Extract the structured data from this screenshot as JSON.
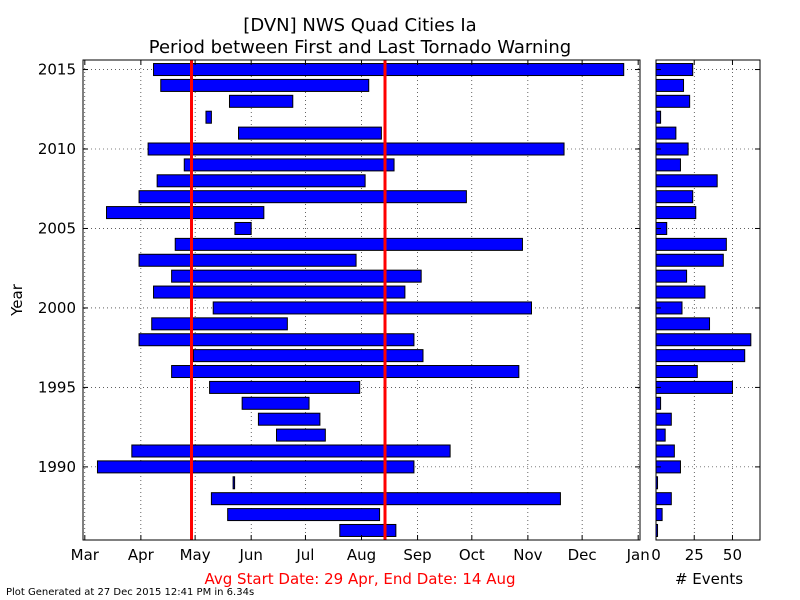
{
  "title": "[DVN] NWS Quad Cities Ia",
  "subtitle": "Period between First and Last Tornado Warning",
  "avg_text": "Avg Start Date: 29 Apr, End Date: 14 Aug",
  "footer": "Plot Generated at 27 Dec 2015 12:41 PM in 6.34s",
  "colors": {
    "bars": "#0000ff",
    "avg_lines": "#ff0000"
  },
  "chart_data": [
    {
      "type": "bar",
      "orientation": "horizontal-range",
      "title": "[DVN] NWS Quad Cities Ia",
      "subtitle": "Period between First and Last Tornado Warning",
      "xlabel": "",
      "ylabel": "Year",
      "x_tick_labels": [
        "Mar",
        "Apr",
        "May",
        "Jun",
        "Jul",
        "Aug",
        "Sep",
        "Oct",
        "Nov",
        "Dec",
        "Jan"
      ],
      "x_tick_dates": [
        "03-01",
        "04-01",
        "05-01",
        "06-01",
        "07-01",
        "08-01",
        "09-01",
        "10-01",
        "11-01",
        "12-01",
        "01-01"
      ],
      "y_ticks": [
        1990,
        1995,
        2000,
        2005,
        2010,
        2015
      ],
      "ylim": [
        1985.4,
        2015.6
      ],
      "grid": true,
      "avg_start": "04-29",
      "avg_end": "08-14",
      "series": [
        {
          "values": [
            {
              "year": 1986,
              "start": "07-20",
              "end": "08-20"
            },
            {
              "year": 1987,
              "start": "05-19",
              "end": "07-42"
            },
            {
              "year": 1988,
              "start": "05-10",
              "end": "11-19"
            },
            {
              "year": 1989,
              "start": "05-22",
              "end": "05-22"
            },
            {
              "year": 1990,
              "start": "03-08",
              "end": "08-30"
            },
            {
              "year": 1991,
              "start": "03-27",
              "end": "09-19"
            },
            {
              "year": 1992,
              "start": "06-15",
              "end": "07-12"
            },
            {
              "year": 1993,
              "start": "06-05",
              "end": "07-09"
            },
            {
              "year": 1994,
              "start": "05-27",
              "end": "07-03"
            },
            {
              "year": 1995,
              "start": "05-09",
              "end": "07-31"
            },
            {
              "year": 1996,
              "start": "04-18",
              "end": "10-27"
            },
            {
              "year": 1997,
              "start": "04-30",
              "end": "09-04"
            },
            {
              "year": 1998,
              "start": "03-31",
              "end": "08-30"
            },
            {
              "year": 1999,
              "start": "04-07",
              "end": "06-21"
            },
            {
              "year": 2000,
              "start": "05-11",
              "end": "11-03"
            },
            {
              "year": 2001,
              "start": "04-08",
              "end": "08-25"
            },
            {
              "year": 2002,
              "start": "04-18",
              "end": "09-03"
            },
            {
              "year": 2003,
              "start": "03-31",
              "end": "07-29"
            },
            {
              "year": 2004,
              "start": "04-20",
              "end": "10-29"
            },
            {
              "year": 2005,
              "start": "05-23",
              "end": "06-01"
            },
            {
              "year": 2006,
              "start": "03-13",
              "end": "05-39"
            },
            {
              "year": 2007,
              "start": "03-31",
              "end": "09-28"
            },
            {
              "year": 2008,
              "start": "04-10",
              "end": "07-34"
            },
            {
              "year": 2009,
              "start": "04-25",
              "end": "08-19"
            },
            {
              "year": 2010,
              "start": "04-05",
              "end": "11-21"
            },
            {
              "year": 2011,
              "start": "05-25",
              "end": "08-12"
            },
            {
              "year": 2012,
              "start": "05-07",
              "end": "05-10"
            },
            {
              "year": 2013,
              "start": "05-20",
              "end": "06-24"
            },
            {
              "year": 2014,
              "start": "04-12",
              "end": "07-36"
            },
            {
              "year": 2015,
              "start": "04-08",
              "end": "12-24"
            }
          ]
        }
      ]
    },
    {
      "type": "bar",
      "orientation": "horizontal",
      "xlabel": "# Events",
      "ylabel": "",
      "x_ticks": [
        0,
        25,
        50
      ],
      "xlim": [
        0,
        68
      ],
      "grid": true,
      "series": [
        {
          "values": [
            {
              "year": 1986,
              "count": 1
            },
            {
              "year": 1987,
              "count": 4
            },
            {
              "year": 1988,
              "count": 10
            },
            {
              "year": 1989,
              "count": 1
            },
            {
              "year": 1990,
              "count": 16
            },
            {
              "year": 1991,
              "count": 12
            },
            {
              "year": 1992,
              "count": 6
            },
            {
              "year": 1993,
              "count": 10
            },
            {
              "year": 1994,
              "count": 3
            },
            {
              "year": 1995,
              "count": 50
            },
            {
              "year": 1996,
              "count": 27
            },
            {
              "year": 1997,
              "count": 58
            },
            {
              "year": 1998,
              "count": 62
            },
            {
              "year": 1999,
              "count": 35
            },
            {
              "year": 2000,
              "count": 17
            },
            {
              "year": 2001,
              "count": 32
            },
            {
              "year": 2002,
              "count": 20
            },
            {
              "year": 2003,
              "count": 44
            },
            {
              "year": 2004,
              "count": 46
            },
            {
              "year": 2005,
              "count": 7
            },
            {
              "year": 2006,
              "count": 26
            },
            {
              "year": 2007,
              "count": 24
            },
            {
              "year": 2008,
              "count": 40
            },
            {
              "year": 2009,
              "count": 16
            },
            {
              "year": 2010,
              "count": 21
            },
            {
              "year": 2011,
              "count": 13
            },
            {
              "year": 2012,
              "count": 3
            },
            {
              "year": 2013,
              "count": 22
            },
            {
              "year": 2014,
              "count": 18
            },
            {
              "year": 2015,
              "count": 24
            }
          ]
        }
      ]
    }
  ]
}
